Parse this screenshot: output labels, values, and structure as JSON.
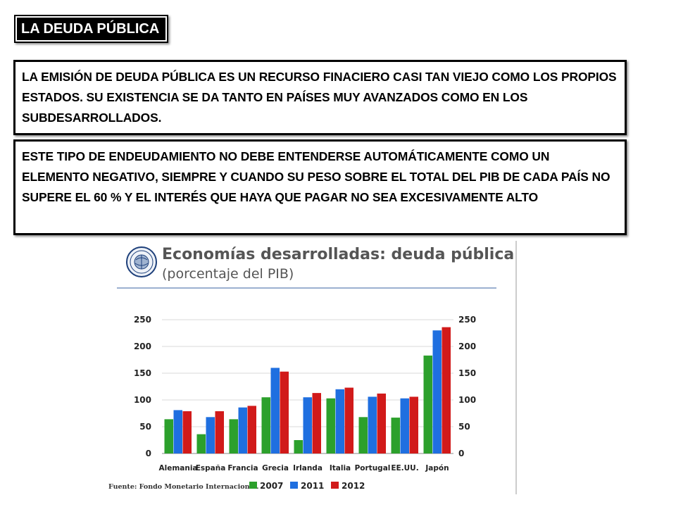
{
  "slide": {
    "title": "LA DEUDA PÚBLICA",
    "paragraph1": "LA EMISIÓN DE DEUDA PÚBLICA ES UN RECURSO FINACIERO CASI TAN VIEJO COMO LOS PROPIOS ESTADOS. SU EXISTENCIA SE DA TANTO EN PAÍSES MUY AVANZADOS COMO EN LOS SUBDESARROLLADOS.",
    "paragraph2": "ESTE TIPO DE ENDEUDAMIENTO NO DEBE ENTENDERSE AUTOMÁTICAMENTE COMO UN ELEMENTO NEGATIVO, SIEMPRE Y CUANDO SU PESO SOBRE EL TOTAL DEL PIB DE CADA PAÍS NO SUPERE EL 60 % Y EL INTERÉS QUE HAYA QUE PAGAR NO SEA EXCESIVAMENTE ALTO"
  },
  "chart_data": {
    "type": "bar",
    "title": "Economías desarrolladas: deuda pública",
    "subtitle": "(porcentaje del PIB)",
    "source": "Fuente: Fondo Monetario Internacional.",
    "categories": [
      "Alemania",
      "España",
      "Francia",
      "Grecia",
      "Irlanda",
      "Italia",
      "Portugal",
      "EE.UU.",
      "Japón"
    ],
    "series": [
      {
        "name": "2007",
        "color": "#2ca02c",
        "values": [
          64,
          36,
          64,
          105,
          25,
          103,
          68,
          67,
          183
        ]
      },
      {
        "name": "2011",
        "color": "#1f6fe0",
        "values": [
          81,
          68,
          86,
          160,
          105,
          120,
          106,
          103,
          230
        ]
      },
      {
        "name": "2012",
        "color": "#d11a1a",
        "values": [
          79,
          79,
          89,
          153,
          113,
          123,
          112,
          106,
          236
        ]
      }
    ],
    "yticks": [
      0,
      50,
      100,
      150,
      200,
      250
    ],
    "ylim": [
      0,
      250
    ],
    "grid": true,
    "legend_position": "bottom",
    "dual_y_axis": true
  }
}
